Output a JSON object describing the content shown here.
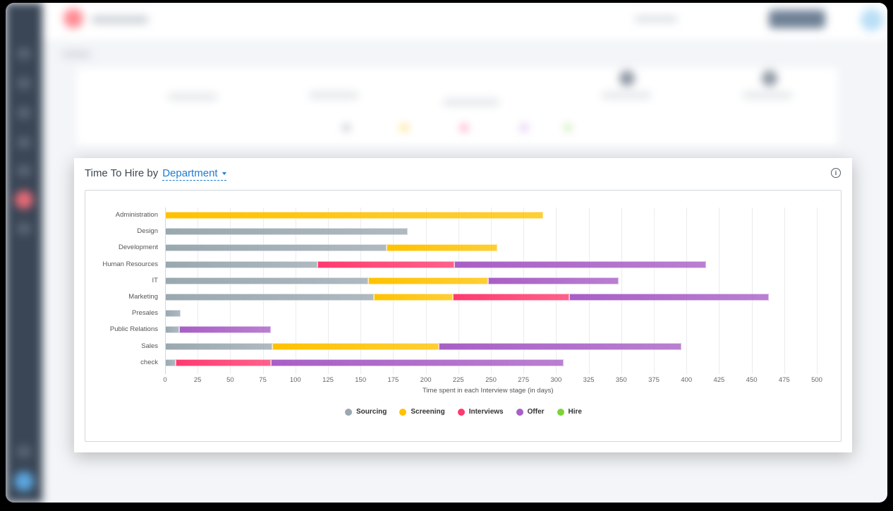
{
  "card": {
    "title_prefix": "Time To Hire by",
    "group_by": "Department",
    "info_icon": "i"
  },
  "colors": {
    "Sourcing": "#9aa8b0",
    "Screening": "#ffc200",
    "Interviews": "#ff3a6e",
    "Offer": "#a85fc6",
    "Hire": "#7cd43a"
  },
  "chart_data": {
    "type": "bar",
    "orientation": "horizontal",
    "stacked": true,
    "title": "Time To Hire by Department",
    "xlabel": "Time spent in each Interview stage (in days)",
    "ylabel": "",
    "xlim": [
      0,
      500
    ],
    "xticks": [
      0,
      25,
      50,
      75,
      100,
      125,
      150,
      175,
      200,
      225,
      250,
      275,
      300,
      325,
      350,
      375,
      400,
      425,
      450,
      475,
      500
    ],
    "grid": true,
    "legend_position": "bottom",
    "categories": [
      "Administration",
      "Design",
      "Development",
      "Human Resources",
      "IT",
      "Marketing",
      "Presales",
      "Public Relations",
      "Sales",
      "check"
    ],
    "series": [
      {
        "name": "Sourcing",
        "values": [
          0,
          186,
          170,
          117,
          156,
          160,
          12,
          11,
          82,
          8
        ]
      },
      {
        "name": "Screening",
        "values": [
          290,
          0,
          85,
          0,
          92,
          61,
          0,
          0,
          128,
          0
        ]
      },
      {
        "name": "Interviews",
        "values": [
          0,
          0,
          0,
          105,
          0,
          89,
          0,
          0,
          0,
          73
        ]
      },
      {
        "name": "Offer",
        "values": [
          0,
          0,
          0,
          193,
          100,
          153,
          0,
          70,
          186,
          225
        ]
      },
      {
        "name": "Hire",
        "values": [
          0,
          0,
          0,
          0,
          0,
          0,
          0,
          0,
          0,
          0
        ]
      }
    ]
  }
}
